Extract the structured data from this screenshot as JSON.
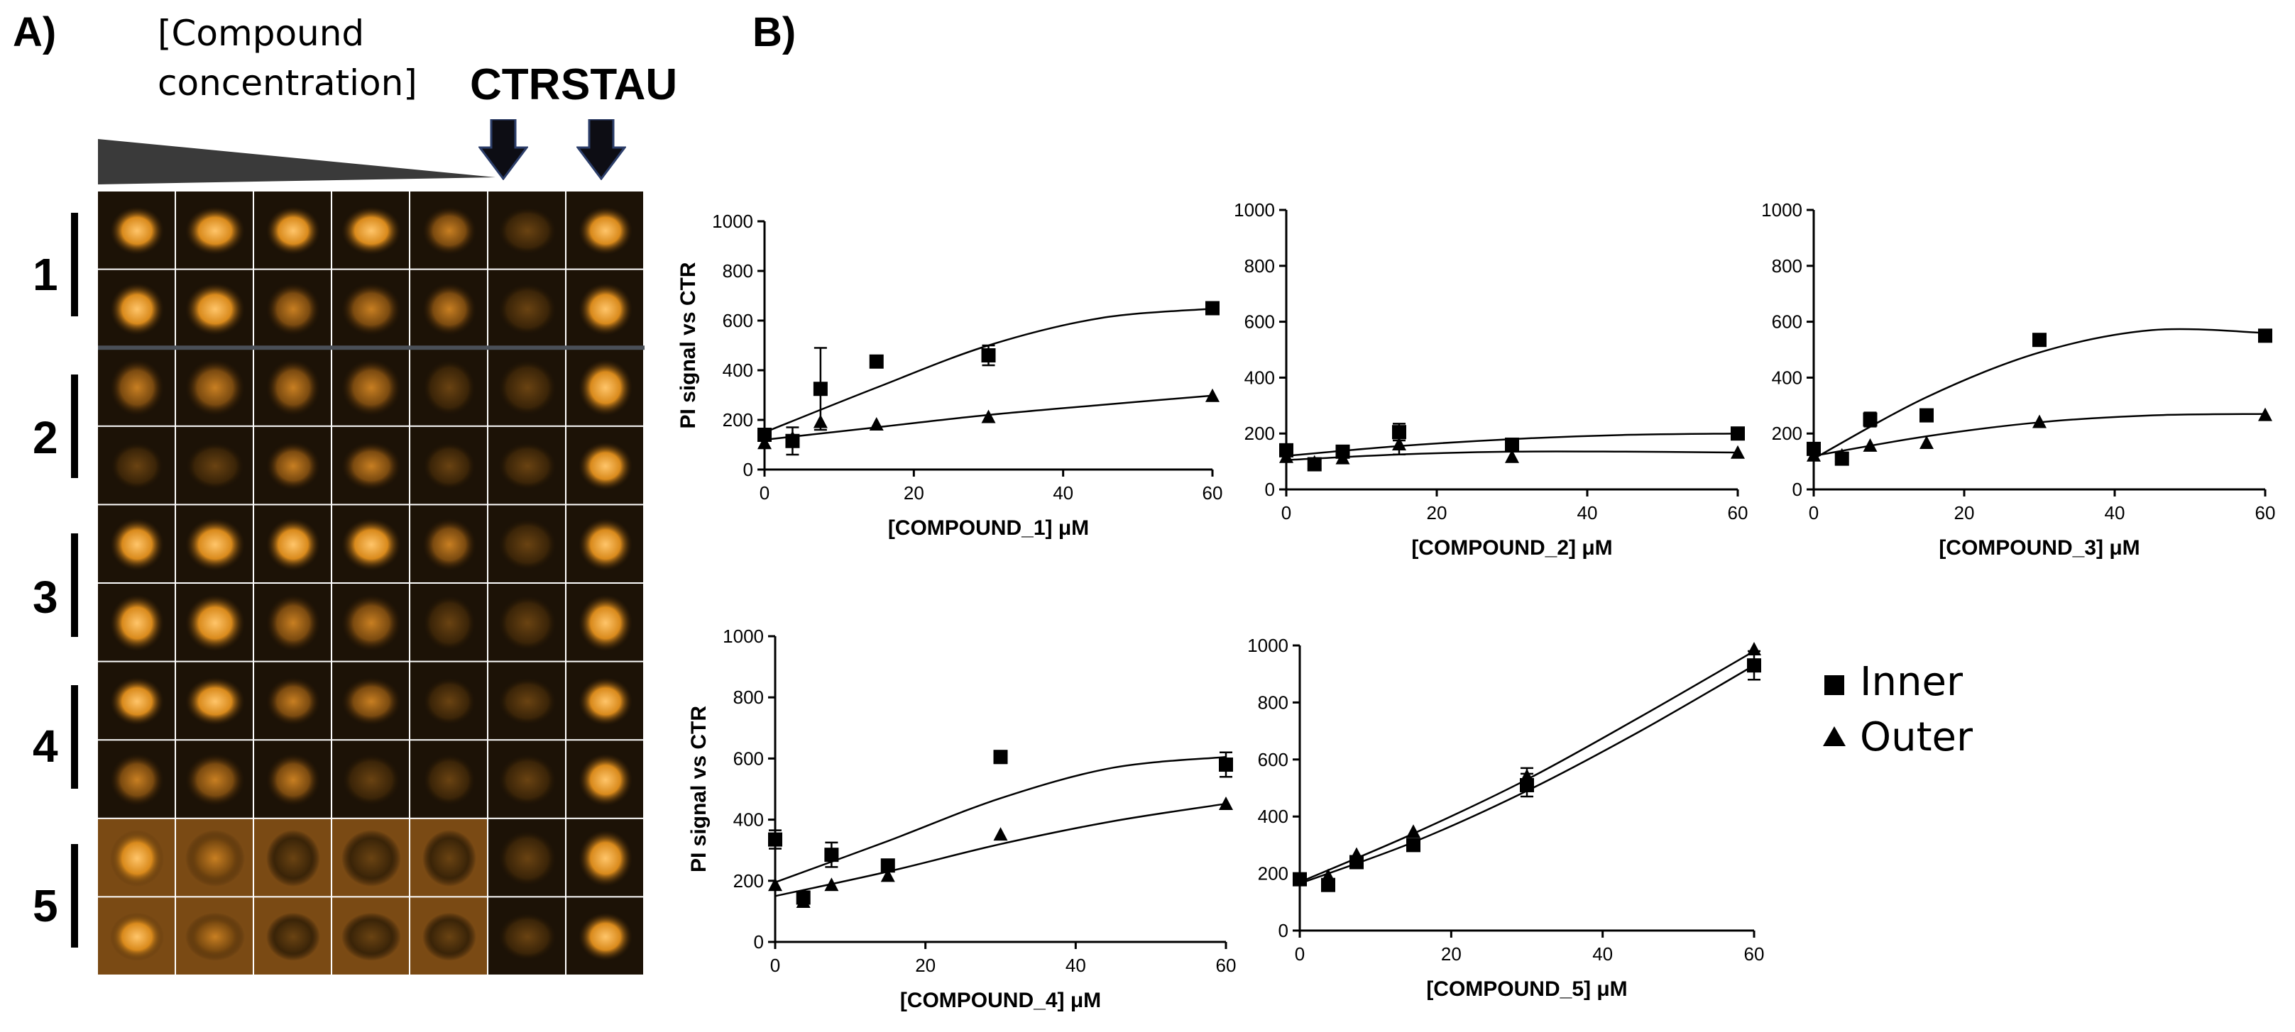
{
  "panel_a": {
    "label": "A)",
    "caption_line1": "[Compound",
    "caption_line2": "concentration]",
    "ctr_label": "CTR",
    "stau_label": "STAU",
    "rows": [
      "1",
      "2",
      "3",
      "4",
      "5"
    ]
  },
  "panel_b": {
    "label": "B)"
  },
  "legend": {
    "inner": "Inner",
    "outer": "Outer"
  },
  "chart_data": [
    {
      "type": "scatter",
      "ylabel": "PI signal vs CTR",
      "xlabel": "[COMPOUND_1] μM",
      "xlim": [
        0,
        60
      ],
      "ylim": [
        0,
        1000
      ],
      "xticks": [
        0,
        20,
        40,
        60
      ],
      "yticks": [
        0,
        200,
        400,
        600,
        800,
        1000
      ],
      "series": [
        {
          "name": "Inner",
          "marker": "square",
          "x": [
            0,
            3.75,
            7.5,
            15,
            30,
            60
          ],
          "y": [
            140,
            115,
            325,
            435,
            460,
            650
          ],
          "err": [
            0,
            55,
            165,
            0,
            40,
            0
          ],
          "fit": [
            [
              0,
              150
            ],
            [
              15,
              330
            ],
            [
              30,
              500
            ],
            [
              45,
              610
            ],
            [
              60,
              648
            ]
          ]
        },
        {
          "name": "Outer",
          "marker": "triangle",
          "x": [
            0,
            3.75,
            7.5,
            15,
            30,
            60
          ],
          "y": [
            105,
            125,
            190,
            180,
            210,
            295
          ],
          "err": [
            0,
            0,
            0,
            0,
            0,
            0
          ],
          "fit": [
            [
              0,
              120
            ],
            [
              15,
              170
            ],
            [
              30,
              220
            ],
            [
              45,
              260
            ],
            [
              60,
              298
            ]
          ]
        }
      ]
    },
    {
      "type": "scatter",
      "ylabel": "",
      "xlabel": "[COMPOUND_2] μM",
      "xlim": [
        0,
        60
      ],
      "ylim": [
        0,
        1000
      ],
      "xticks": [
        0,
        20,
        40,
        60
      ],
      "yticks": [
        0,
        200,
        400,
        600,
        800,
        1000
      ],
      "series": [
        {
          "name": "Inner",
          "marker": "square",
          "x": [
            0,
            3.75,
            7.5,
            15,
            30,
            60
          ],
          "y": [
            140,
            90,
            135,
            205,
            160,
            200
          ],
          "err": [
            0,
            0,
            0,
            30,
            20,
            0
          ],
          "fit": [
            [
              0,
              120
            ],
            [
              15,
              155
            ],
            [
              30,
              180
            ],
            [
              45,
              195
            ],
            [
              60,
              200
            ]
          ]
        },
        {
          "name": "Outer",
          "marker": "triangle",
          "x": [
            0,
            3.75,
            7.5,
            15,
            30,
            60
          ],
          "y": [
            115,
            95,
            110,
            160,
            115,
            130
          ],
          "err": [
            0,
            0,
            0,
            35,
            0,
            0
          ],
          "fit": [
            [
              0,
              105
            ],
            [
              15,
              125
            ],
            [
              30,
              135
            ],
            [
              45,
              135
            ],
            [
              60,
              132
            ]
          ]
        }
      ]
    },
    {
      "type": "scatter",
      "ylabel": "",
      "xlabel": "[COMPOUND_3] μM",
      "xlim": [
        0,
        60
      ],
      "ylim": [
        0,
        1000
      ],
      "xticks": [
        0,
        20,
        40,
        60
      ],
      "yticks": [
        0,
        200,
        400,
        600,
        800,
        1000
      ],
      "series": [
        {
          "name": "Inner",
          "marker": "square",
          "x": [
            0,
            3.75,
            7.5,
            15,
            30,
            60
          ],
          "y": [
            145,
            110,
            250,
            265,
            535,
            550
          ],
          "err": [
            0,
            0,
            25,
            0,
            0,
            0
          ],
          "fit": [
            [
              0,
              110
            ],
            [
              15,
              330
            ],
            [
              30,
              490
            ],
            [
              45,
              570
            ],
            [
              60,
              560
            ]
          ]
        },
        {
          "name": "Outer",
          "marker": "triangle",
          "x": [
            0,
            3.75,
            7.5,
            15,
            30,
            60
          ],
          "y": [
            120,
            120,
            155,
            165,
            240,
            265
          ],
          "err": [
            0,
            0,
            0,
            0,
            0,
            0
          ],
          "fit": [
            [
              0,
              120
            ],
            [
              15,
              190
            ],
            [
              30,
              240
            ],
            [
              45,
              265
            ],
            [
              60,
              270
            ]
          ]
        }
      ]
    },
    {
      "type": "scatter",
      "ylabel": "PI signal vs CTR",
      "xlabel": "[COMPOUND_4] μM",
      "xlim": [
        0,
        60
      ],
      "ylim": [
        0,
        1000
      ],
      "xticks": [
        0,
        20,
        40,
        60
      ],
      "yticks": [
        0,
        200,
        400,
        600,
        800,
        1000
      ],
      "series": [
        {
          "name": "Inner",
          "marker": "square",
          "x": [
            0,
            3.75,
            7.5,
            15,
            30,
            60
          ],
          "y": [
            335,
            145,
            285,
            250,
            605,
            580
          ],
          "err": [
            30,
            20,
            40,
            0,
            20,
            40
          ],
          "fit": [
            [
              0,
              195
            ],
            [
              15,
              330
            ],
            [
              30,
              470
            ],
            [
              45,
              570
            ],
            [
              60,
              605
            ]
          ]
        },
        {
          "name": "Outer",
          "marker": "triangle",
          "x": [
            0,
            3.75,
            7.5,
            15,
            30,
            60
          ],
          "y": [
            185,
            130,
            185,
            215,
            350,
            450
          ],
          "err": [
            0,
            0,
            0,
            0,
            0,
            0
          ],
          "fit": [
            [
              0,
              150
            ],
            [
              15,
              230
            ],
            [
              30,
              320
            ],
            [
              45,
              395
            ],
            [
              60,
              452
            ]
          ]
        }
      ]
    },
    {
      "type": "scatter",
      "ylabel": "",
      "xlabel": "[COMPOUND_5] μM",
      "xlim": [
        0,
        60
      ],
      "ylim": [
        0,
        1000
      ],
      "xticks": [
        0,
        20,
        40,
        60
      ],
      "yticks": [
        0,
        200,
        400,
        600,
        800,
        1000
      ],
      "series": [
        {
          "name": "Inner",
          "marker": "square",
          "x": [
            0,
            3.75,
            7.5,
            15,
            30,
            60
          ],
          "y": [
            180,
            160,
            240,
            300,
            510,
            930
          ],
          "err": [
            0,
            0,
            0,
            0,
            40,
            50
          ],
          "fit": [
            [
              0,
              165
            ],
            [
              15,
              310
            ],
            [
              30,
              490
            ],
            [
              45,
              700
            ],
            [
              60,
              930
            ]
          ]
        },
        {
          "name": "Outer",
          "marker": "triangle",
          "x": [
            0,
            3.75,
            7.5,
            15,
            30,
            60
          ],
          "y": [
            180,
            190,
            265,
            345,
            540,
            985
          ],
          "err": [
            0,
            0,
            0,
            0,
            30,
            0
          ],
          "fit": [
            [
              0,
              170
            ],
            [
              15,
              340
            ],
            [
              30,
              530
            ],
            [
              45,
              750
            ],
            [
              60,
              980
            ]
          ]
        }
      ]
    }
  ]
}
